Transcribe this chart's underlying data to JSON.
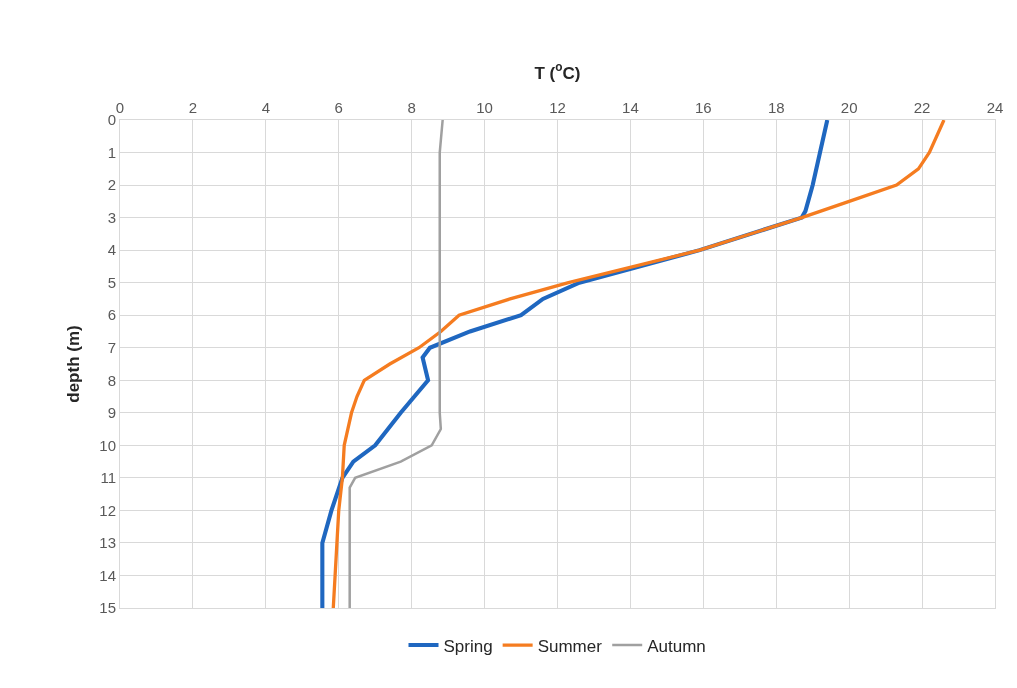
{
  "chart_data": {
    "type": "line",
    "xlabel": "T ($^{o}$C)",
    "ylabel": "depth (m)",
    "xlim": [
      0,
      24
    ],
    "xticks": [
      0,
      2,
      4,
      6,
      8,
      10,
      12,
      14,
      16,
      18,
      20,
      22,
      24
    ],
    "ylim": [
      15,
      0
    ],
    "yticks": [
      0,
      1,
      2,
      3,
      4,
      5,
      6,
      7,
      8,
      9,
      10,
      11,
      12,
      13,
      14,
      15
    ],
    "grid": true,
    "legend": "bottom",
    "marker": "none",
    "line_style": "solid",
    "series": [
      {
        "name": "Spring",
        "color": "#1f67c0",
        "x": [
          19.4,
          19.2,
          19.0,
          18.8,
          18.7,
          15.9,
          12.6,
          11.6,
          11.0,
          9.6,
          8.5,
          8.3,
          8.45,
          7.7,
          7.0,
          6.4,
          6.1,
          5.8,
          5.55,
          5.55,
          5.55
        ],
        "values": [
          0,
          1,
          2,
          2.8,
          3,
          4,
          5,
          5.5,
          6,
          6.5,
          7,
          7.3,
          8,
          9,
          10,
          10.5,
          11,
          12,
          13,
          14,
          15
        ]
      },
      {
        "name": "Summer",
        "color": "#f57c20",
        "x": [
          22.6,
          22.2,
          21.9,
          21.3,
          20.0,
          18.7,
          15.9,
          12.3,
          10.7,
          9.3,
          8.8,
          8.2,
          7.4,
          6.7,
          6.5,
          6.35,
          6.15,
          6.1,
          6.0,
          5.95,
          5.9,
          5.85
        ],
        "values": [
          0,
          1,
          1.5,
          2,
          2.5,
          3,
          4,
          5,
          5.5,
          6,
          6.5,
          7,
          7.5,
          8,
          8.5,
          9,
          10,
          11,
          12,
          13,
          14,
          15
        ]
      },
      {
        "name": "Autumn",
        "color": "#a0a0a0",
        "x": [
          8.85,
          8.77,
          8.77,
          8.77,
          8.8,
          8.55,
          7.7,
          6.45,
          6.3,
          6.3,
          6.3
        ],
        "values": [
          0,
          1,
          2,
          9,
          9.5,
          10,
          10.5,
          11,
          11.3,
          12,
          15
        ]
      }
    ]
  }
}
